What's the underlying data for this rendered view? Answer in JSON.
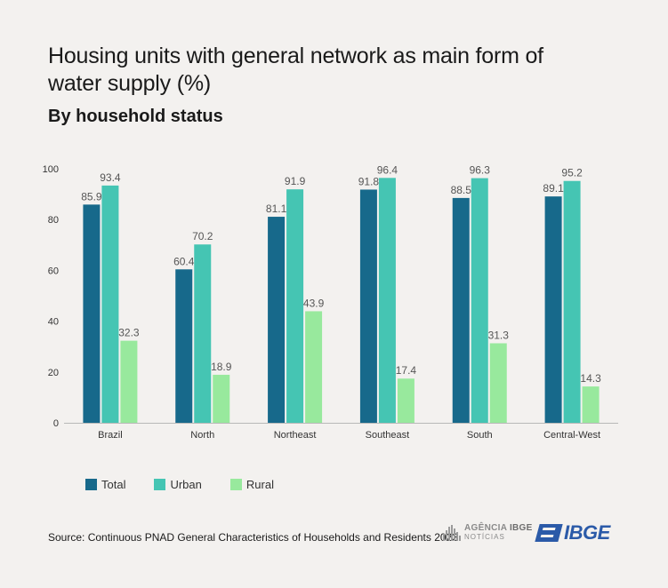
{
  "title": "Housing units with general network as main form of water supply (%)",
  "subtitle": "By household status",
  "legend": [
    {
      "label": "Total",
      "color": "#17698b"
    },
    {
      "label": "Urban",
      "color": "#45c5b3"
    },
    {
      "label": "Rural",
      "color": "#98e99d"
    }
  ],
  "source": "Source: Continuous PNAD General Characteristics of Households and Residents 2023",
  "logos": {
    "agencia_line1": "AGÊNCIA",
    "agencia_line1_bold": "IBGE",
    "agencia_line2": "NOTÍCIAS",
    "ibge": "IBGE"
  },
  "chart_data": {
    "type": "bar",
    "categories": [
      "Brazil",
      "North",
      "Northeast",
      "Southeast",
      "South",
      "Central-West"
    ],
    "series": [
      {
        "name": "Total",
        "color": "#17698b",
        "values": [
          85.9,
          60.4,
          81.1,
          91.8,
          88.5,
          89.1
        ]
      },
      {
        "name": "Urban",
        "color": "#45c5b3",
        "values": [
          93.4,
          70.2,
          91.9,
          96.4,
          96.3,
          95.2
        ]
      },
      {
        "name": "Rural",
        "color": "#98e99d",
        "values": [
          32.3,
          18.9,
          43.9,
          17.4,
          31.3,
          14.3
        ]
      }
    ],
    "ylim": [
      0,
      100
    ],
    "yticks": [
      0,
      20,
      40,
      60,
      80,
      100
    ],
    "grid": false,
    "data_labels": true,
    "legend_position": "bottom-left"
  }
}
